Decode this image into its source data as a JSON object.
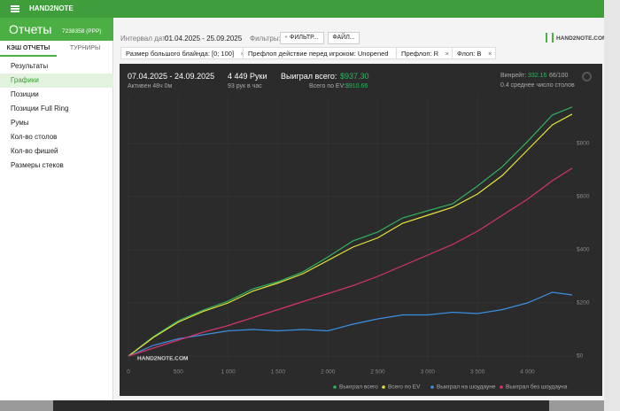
{
  "app": {
    "title": "HAND2NOTE",
    "section": "Отчеты",
    "account": "7238358 (PPP)"
  },
  "tabs": [
    "КЭШ ОТЧЕТЫ",
    "ТУРНИРЫ"
  ],
  "menu": [
    "Результаты",
    "Графики",
    "Позиции",
    "Позиции Full Ring",
    "Румы",
    "Кол-во столов",
    "Кол-во фишей",
    "Размеры стеков"
  ],
  "toolbar": {
    "date_label": "Интервал дат:",
    "date_range": "01.04.2025 - 25.09.2025",
    "filters_label": "Фильтры:",
    "add_filter": "ФИЛЬТР...",
    "file": "ФАЙЛ...",
    "logo": "HAND2NOTE.COM"
  },
  "filters": [
    "Размер большого блайнда: [0; 100]",
    "Префлоп действие перед игроком: Unopened",
    "Префлоп: R",
    "Флоп: B"
  ],
  "stats": {
    "date_range": "07.04.2025 - 24.09.2025",
    "active": "Активен 48ч 0м",
    "hands": "4 449 Руки",
    "hands_per_hour": "93 рук в час",
    "won_label": "Выиграл всего:",
    "won": "$937.30",
    "ev_label": "Всего по EV:",
    "ev": "$910.66",
    "winrate_label": "Винрейт:",
    "winrate": "332.16",
    "winrate_unit": "66/100",
    "tables": "0.4 среднее число столов"
  },
  "chart_data": {
    "type": "line",
    "watermark": "HAND2NOTE.COM",
    "x": [
      0,
      250,
      500,
      750,
      1000,
      1250,
      1500,
      1750,
      2000,
      2250,
      2500,
      2750,
      3000,
      3250,
      3500,
      3750,
      4000,
      4250,
      4449
    ],
    "series": [
      {
        "name": "Выиграл всего",
        "color": "#2fb35f",
        "values": [
          0,
          73,
          133,
          173,
          207,
          253,
          280,
          317,
          373,
          433,
          467,
          520,
          547,
          573,
          640,
          713,
          807,
          907,
          937.3
        ]
      },
      {
        "name": "Всего по EV",
        "color": "#e6e63a",
        "values": [
          0,
          70,
          128,
          168,
          200,
          245,
          275,
          310,
          360,
          410,
          445,
          500,
          530,
          560,
          610,
          680,
          775,
          870,
          910.66
        ]
      },
      {
        "name": "Выиграл на шоудауне",
        "color": "#3a8fe0",
        "values": [
          0,
          40,
          65,
          80,
          95,
          100,
          95,
          100,
          95,
          120,
          140,
          155,
          155,
          165,
          160,
          175,
          200,
          240,
          230
        ]
      },
      {
        "name": "Выиграл без шоудауна",
        "color": "#d6336c",
        "values": [
          0,
          30,
          60,
          90,
          115,
          145,
          175,
          205,
          235,
          265,
          300,
          340,
          380,
          420,
          470,
          530,
          590,
          660,
          707
        ]
      }
    ],
    "xlim": [
      0,
      4449
    ],
    "ylim": [
      -20,
      980
    ],
    "xticks": [
      0,
      500,
      {
        "value": 1000,
        "label": "1 000"
      },
      {
        "value": 1500,
        "label": "1 500"
      },
      {
        "value": 2000,
        "label": "2 000"
      },
      {
        "value": 2500,
        "label": "2 500"
      },
      {
        "value": 3000,
        "label": "3 000"
      },
      {
        "value": 3500,
        "label": "3 500"
      },
      {
        "value": 4000,
        "label": "4 000"
      }
    ],
    "yticks": [
      {
        "value": 0,
        "label": "$0"
      },
      {
        "value": 200,
        "label": "$200"
      },
      {
        "value": 400,
        "label": "$400"
      },
      {
        "value": 600,
        "label": "$600"
      },
      {
        "value": 800,
        "label": "$800"
      }
    ],
    "grid": true
  }
}
